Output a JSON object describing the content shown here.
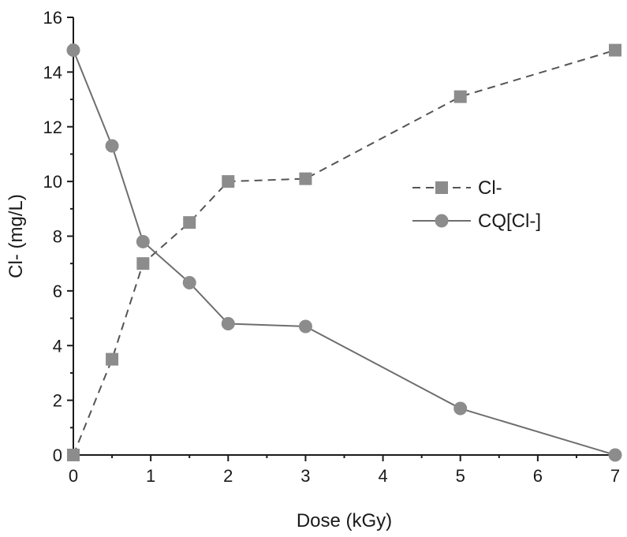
{
  "chart_data": {
    "type": "line",
    "xlabel": "Dose (kGy)",
    "ylabel": "Cl- (mg/L)",
    "xlim": [
      0,
      7
    ],
    "ylim": [
      0,
      16
    ],
    "xticks": [
      0,
      1,
      2,
      3,
      4,
      5,
      6,
      7
    ],
    "yticks": [
      0,
      2,
      4,
      6,
      8,
      10,
      12,
      14,
      16
    ],
    "grid": false,
    "legend_position": "right",
    "series": [
      {
        "name": "Cl-",
        "marker": "square",
        "line": "dashed",
        "color": "#8c8c8c",
        "x": [
          0,
          0.5,
          0.9,
          1.5,
          2,
          3,
          5,
          7
        ],
        "y": [
          0,
          3.5,
          7.0,
          8.5,
          10.0,
          10.1,
          13.1,
          14.8
        ]
      },
      {
        "name": "CQ[Cl-]",
        "marker": "circle",
        "line": "solid",
        "color": "#8c8c8c",
        "x": [
          0,
          0.5,
          0.9,
          1.5,
          2,
          3,
          5,
          7
        ],
        "y": [
          14.8,
          11.3,
          7.8,
          6.3,
          4.8,
          4.7,
          1.7,
          0
        ]
      }
    ]
  }
}
